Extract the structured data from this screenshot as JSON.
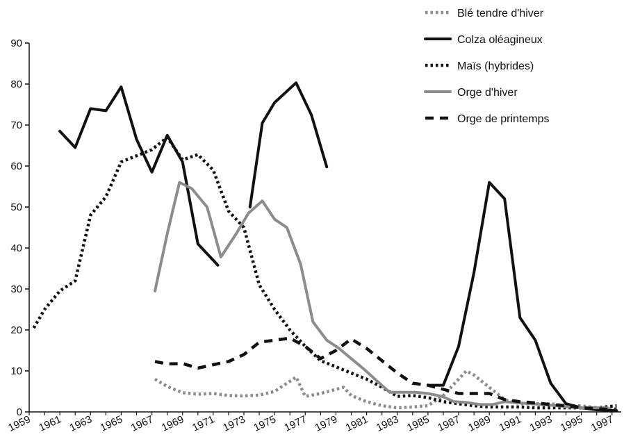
{
  "chart_data": {
    "type": "line",
    "title": "",
    "xlabel": "",
    "ylabel": "",
    "ylim": [
      0,
      90
    ],
    "y_ticks": [
      "0",
      "10",
      "20",
      "30",
      "40",
      "50",
      "60",
      "70",
      "80",
      "90"
    ],
    "x_ticks": [
      "1959",
      "1961",
      "1963",
      "1965",
      "1967",
      "1969",
      "1971",
      "1973",
      "1975",
      "1977",
      "1979",
      "1981",
      "1983",
      "1985",
      "1987",
      "1989",
      "1991",
      "1993",
      "1995",
      "1997"
    ],
    "x_range": [
      1959,
      1997.6
    ],
    "grid": false,
    "legend_position": "top-right",
    "series": [
      {
        "name": "Blé tendre d'hiver",
        "style": "dotted",
        "color": "#8c8c8c",
        "points": [
          [
            1967.2,
            8
          ],
          [
            1968,
            6.2
          ],
          [
            1969,
            4.7
          ],
          [
            1970,
            4.3
          ],
          [
            1971,
            4.5
          ],
          [
            1972,
            4
          ],
          [
            1973,
            3.9
          ],
          [
            1974,
            4.1
          ],
          [
            1975,
            5
          ],
          [
            1976.4,
            8.5
          ],
          [
            1977,
            3.8
          ],
          [
            1978,
            4.5
          ],
          [
            1979,
            5.5
          ],
          [
            1979.5,
            6
          ],
          [
            1980,
            4
          ],
          [
            1981,
            2.5
          ],
          [
            1982,
            1.5
          ],
          [
            1983,
            1
          ],
          [
            1984,
            1.2
          ],
          [
            1985,
            1.5
          ],
          [
            1986,
            4
          ],
          [
            1987,
            8
          ],
          [
            1987.5,
            10
          ],
          [
            1988,
            9
          ],
          [
            1989,
            6
          ],
          [
            1990,
            3
          ],
          [
            1991,
            2
          ],
          [
            1992,
            2
          ],
          [
            1993,
            2
          ],
          [
            1994,
            1.5
          ],
          [
            1995,
            1.5
          ],
          [
            1996,
            1
          ],
          [
            1997.3,
            0.8
          ]
        ]
      },
      {
        "name": "Colza oléagineux",
        "style": "solid",
        "color": "#111111",
        "segments": [
          [
            [
              1961,
              68.5
            ],
            [
              1962,
              64.5
            ],
            [
              1963,
              74
            ],
            [
              1964,
              73.5
            ],
            [
              1965,
              79.3
            ],
            [
              1966,
              66.5
            ],
            [
              1967,
              58.5
            ],
            [
              1968,
              67.5
            ],
            [
              1969,
              61
            ],
            [
              1970,
              41
            ],
            [
              1971.3,
              35.8
            ]
          ],
          [
            [
              1973.4,
              50
            ],
            [
              1974.2,
              70.5
            ],
            [
              1975,
              75.5
            ],
            [
              1976.4,
              80.3
            ],
            [
              1977.4,
              72.5
            ],
            [
              1978.4,
              59.8
            ]
          ],
          [
            [
              1985,
              6.5
            ],
            [
              1986,
              6.5
            ],
            [
              1987,
              16
            ],
            [
              1988,
              34
            ],
            [
              1989,
              56
            ],
            [
              1990,
              52
            ],
            [
              1991,
              23
            ],
            [
              1992,
              17.5
            ],
            [
              1993,
              7
            ],
            [
              1994,
              2
            ],
            [
              1995,
              1
            ],
            [
              1996,
              0.5
            ],
            [
              1997.3,
              0.3
            ]
          ]
        ]
      },
      {
        "name": "Maïs (hybrides)",
        "style": "dotted",
        "color": "#111111",
        "points": [
          [
            1959.3,
            20.5
          ],
          [
            1960,
            25
          ],
          [
            1961,
            29.5
          ],
          [
            1962,
            32
          ],
          [
            1963,
            48
          ],
          [
            1964,
            52.5
          ],
          [
            1965,
            61
          ],
          [
            1966,
            62.5
          ],
          [
            1967,
            64
          ],
          [
            1968,
            67
          ],
          [
            1969,
            61.5
          ],
          [
            1970,
            62.8
          ],
          [
            1971,
            59
          ],
          [
            1972,
            49
          ],
          [
            1973,
            45
          ],
          [
            1974,
            31
          ],
          [
            1975,
            25
          ],
          [
            1976,
            20
          ],
          [
            1977,
            16
          ],
          [
            1978,
            12.5
          ],
          [
            1979,
            11
          ],
          [
            1980,
            9.5
          ],
          [
            1981,
            8
          ],
          [
            1982,
            6
          ],
          [
            1983,
            3.8
          ],
          [
            1984,
            4
          ],
          [
            1985,
            3.5
          ],
          [
            1986,
            2.5
          ],
          [
            1987,
            2
          ],
          [
            1988,
            1.5
          ],
          [
            1989,
            1.2
          ],
          [
            1990,
            1.2
          ],
          [
            1991,
            1.2
          ],
          [
            1992,
            1
          ],
          [
            1993,
            1
          ],
          [
            1994,
            1
          ],
          [
            1995,
            1
          ],
          [
            1996,
            1
          ],
          [
            1997.3,
            1.5
          ]
        ]
      },
      {
        "name": "Orge d'hiver",
        "style": "solid",
        "color": "#8c8c8c",
        "points": [
          [
            1967.2,
            29.5
          ],
          [
            1968,
            43.5
          ],
          [
            1968.8,
            56
          ],
          [
            1969.6,
            54.5
          ],
          [
            1970.6,
            50
          ],
          [
            1971.5,
            37.8
          ],
          [
            1972.5,
            43.5
          ],
          [
            1973.3,
            48.5
          ],
          [
            1974.2,
            51.5
          ],
          [
            1975,
            47
          ],
          [
            1975.8,
            45
          ],
          [
            1976.7,
            36
          ],
          [
            1977.5,
            22
          ],
          [
            1978.4,
            17.5
          ],
          [
            1979.2,
            15.5
          ],
          [
            1980,
            13
          ],
          [
            1980.8,
            10.5
          ],
          [
            1981.7,
            7.5
          ],
          [
            1982.5,
            4.8
          ],
          [
            1983.4,
            4.8
          ],
          [
            1984.2,
            4.8
          ],
          [
            1985,
            4.5
          ],
          [
            1985.9,
            3.8
          ],
          [
            1986.7,
            2.5
          ],
          [
            1987.5,
            2.3
          ],
          [
            1988.4,
            1.8
          ],
          [
            1989.2,
            1.8
          ],
          [
            1990,
            2.5
          ],
          [
            1990.9,
            2.2
          ],
          [
            1991.7,
            2
          ],
          [
            1992.5,
            1.8
          ],
          [
            1993.4,
            1.5
          ],
          [
            1994.2,
            1.2
          ],
          [
            1995,
            1
          ],
          [
            1995.9,
            1
          ],
          [
            1996.7,
            1
          ]
        ]
      },
      {
        "name": "Orge de printemps",
        "style": "dashed",
        "color": "#111111",
        "points": [
          [
            1967.2,
            12.3
          ],
          [
            1968,
            11.7
          ],
          [
            1969,
            11.8
          ],
          [
            1970,
            10.7
          ],
          [
            1971,
            11.5
          ],
          [
            1972,
            12.3
          ],
          [
            1973,
            14
          ],
          [
            1974,
            17
          ],
          [
            1975,
            17.5
          ],
          [
            1976,
            18
          ],
          [
            1977,
            16
          ],
          [
            1978,
            13
          ],
          [
            1979,
            15
          ],
          [
            1980,
            17.8
          ],
          [
            1981,
            15.5
          ],
          [
            1982,
            12.5
          ],
          [
            1983,
            9.5
          ],
          [
            1984,
            7
          ],
          [
            1985,
            6.5
          ],
          [
            1986,
            5.5
          ],
          [
            1987,
            4.5
          ],
          [
            1988,
            4.5
          ],
          [
            1989,
            4.5
          ],
          [
            1990,
            3
          ],
          [
            1991,
            2.5
          ],
          [
            1992,
            2.2
          ],
          [
            1993,
            1.8
          ],
          [
            1994,
            1.5
          ],
          [
            1995,
            1
          ],
          [
            1996,
            0.8
          ],
          [
            1997.3,
            0.5
          ]
        ]
      }
    ]
  }
}
